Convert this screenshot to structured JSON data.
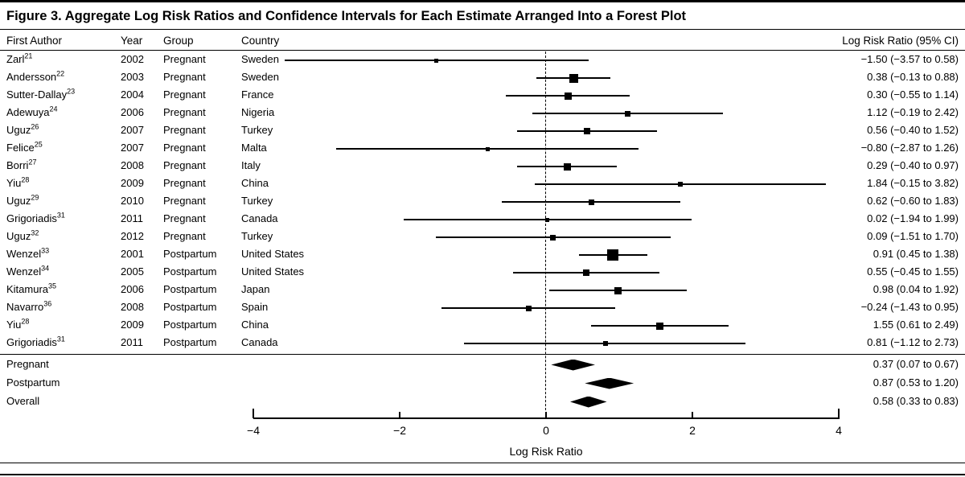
{
  "figure": {
    "title": "Figure 3. Aggregate Log Risk Ratios and Confidence Intervals for Each Estimate Arranged Into a Forest Plot"
  },
  "colors": {
    "ink": "#000000",
    "background": "#ffffff"
  },
  "chart_data": {
    "type": "scatter",
    "subtype": "forest-plot",
    "title": "Figure 3. Aggregate Log Risk Ratios and Confidence Intervals for Each Estimate Arranged Into a Forest Plot",
    "xlabel": "Log Risk Ratio",
    "xlim": [
      -4,
      4
    ],
    "grid": false,
    "zero_reference_line": 0,
    "x_ticks": [
      {
        "v": -4,
        "label": "−4"
      },
      {
        "v": -2,
        "label": "−2"
      },
      {
        "v": 0,
        "label": "0"
      },
      {
        "v": 2,
        "label": "2"
      },
      {
        "v": 4,
        "label": "4"
      }
    ],
    "columns": {
      "author": "First Author",
      "year": "Year",
      "group": "Group",
      "country": "Country",
      "ci": "Log Risk Ratio (95% CI)"
    },
    "studies": [
      {
        "author": "Zarl",
        "ref": "21",
        "year": "2002",
        "group": "Pregnant",
        "country": "Sweden",
        "estimate": -1.5,
        "lower": -3.57,
        "upper": 0.58,
        "label": "−1.50 (−3.57 to 0.58)",
        "marker": 5
      },
      {
        "author": "Andersson",
        "ref": "22",
        "year": "2003",
        "group": "Pregnant",
        "country": "Sweden",
        "estimate": 0.38,
        "lower": -0.13,
        "upper": 0.88,
        "label": "0.38 (−0.13 to 0.88)",
        "marker": 11
      },
      {
        "author": "Sutter-Dallay",
        "ref": "23",
        "year": "2004",
        "group": "Pregnant",
        "country": "France",
        "estimate": 0.3,
        "lower": -0.55,
        "upper": 1.14,
        "label": "0.30 (−0.55 to 1.14)",
        "marker": 9
      },
      {
        "author": "Adewuya",
        "ref": "24",
        "year": "2006",
        "group": "Pregnant",
        "country": "Nigeria",
        "estimate": 1.12,
        "lower": -0.19,
        "upper": 2.42,
        "label": "1.12 (−0.19 to 2.42)",
        "marker": 7
      },
      {
        "author": "Uguz",
        "ref": "26",
        "year": "2007",
        "group": "Pregnant",
        "country": "Turkey",
        "estimate": 0.56,
        "lower": -0.4,
        "upper": 1.52,
        "label": "0.56 (−0.40 to 1.52)",
        "marker": 8
      },
      {
        "author": "Felice",
        "ref": "25",
        "year": "2007",
        "group": "Pregnant",
        "country": "Malta",
        "estimate": -0.8,
        "lower": -2.87,
        "upper": 1.26,
        "label": "−0.80 (−2.87 to 1.26)",
        "marker": 5
      },
      {
        "author": "Borri",
        "ref": "27",
        "year": "2008",
        "group": "Pregnant",
        "country": "Italy",
        "estimate": 0.29,
        "lower": -0.4,
        "upper": 0.97,
        "label": "0.29 (−0.40 to 0.97)",
        "marker": 9
      },
      {
        "author": "Yiu",
        "ref": "28",
        "year": "2009",
        "group": "Pregnant",
        "country": "China",
        "estimate": 1.84,
        "lower": -0.15,
        "upper": 3.82,
        "label": "1.84 (−0.15 to 3.82)",
        "marker": 6
      },
      {
        "author": "Uguz",
        "ref": "29",
        "year": "2010",
        "group": "Pregnant",
        "country": "Turkey",
        "estimate": 0.62,
        "lower": -0.6,
        "upper": 1.83,
        "label": "0.62 (−0.60 to 1.83)",
        "marker": 7
      },
      {
        "author": "Grigoriadis",
        "ref": "31",
        "year": "2011",
        "group": "Pregnant",
        "country": "Canada",
        "estimate": 0.02,
        "lower": -1.94,
        "upper": 1.99,
        "label": "0.02 (−1.94 to 1.99)",
        "marker": 5
      },
      {
        "author": "Uguz",
        "ref": "32",
        "year": "2012",
        "group": "Pregnant",
        "country": "Turkey",
        "estimate": 0.09,
        "lower": -1.51,
        "upper": 1.7,
        "label": "0.09 (−1.51 to 1.70)",
        "marker": 7
      },
      {
        "author": "Wenzel",
        "ref": "33",
        "year": "2001",
        "group": "Postpartum",
        "country": "United States",
        "estimate": 0.91,
        "lower": 0.45,
        "upper": 1.38,
        "label": "0.91 (0.45 to 1.38)",
        "marker": 14
      },
      {
        "author": "Wenzel",
        "ref": "34",
        "year": "2005",
        "group": "Postpartum",
        "country": "United States",
        "estimate": 0.55,
        "lower": -0.45,
        "upper": 1.55,
        "label": "0.55 (−0.45 to 1.55)",
        "marker": 8
      },
      {
        "author": "Kitamura",
        "ref": "35",
        "year": "2006",
        "group": "Postpartum",
        "country": "Japan",
        "estimate": 0.98,
        "lower": 0.04,
        "upper": 1.92,
        "label": "0.98 (0.04 to 1.92)",
        "marker": 9
      },
      {
        "author": "Navarro",
        "ref": "36",
        "year": "2008",
        "group": "Postpartum",
        "country": "Spain",
        "estimate": -0.24,
        "lower": -1.43,
        "upper": 0.95,
        "label": "−0.24 (−1.43 to 0.95)",
        "marker": 7
      },
      {
        "author": "Yiu",
        "ref": "28",
        "year": "2009",
        "group": "Postpartum",
        "country": "China",
        "estimate": 1.55,
        "lower": 0.61,
        "upper": 2.49,
        "label": "1.55 (0.61 to 2.49)",
        "marker": 9
      },
      {
        "author": "Grigoriadis",
        "ref": "31",
        "year": "2011",
        "group": "Postpartum",
        "country": "Canada",
        "estimate": 0.81,
        "lower": -1.12,
        "upper": 2.73,
        "label": "0.81 (−1.12 to 2.73)",
        "marker": 6
      }
    ],
    "summaries": [
      {
        "label": "Pregnant",
        "estimate": 0.37,
        "lower": 0.07,
        "upper": 0.67,
        "ci_label": "0.37 (0.07 to 0.67)"
      },
      {
        "label": "Postpartum",
        "estimate": 0.87,
        "lower": 0.53,
        "upper": 1.2,
        "ci_label": "0.87 (0.53 to 1.20)"
      },
      {
        "label": "Overall",
        "estimate": 0.58,
        "lower": 0.33,
        "upper": 0.83,
        "ci_label": "0.58 (0.33 to 0.83)"
      }
    ]
  }
}
